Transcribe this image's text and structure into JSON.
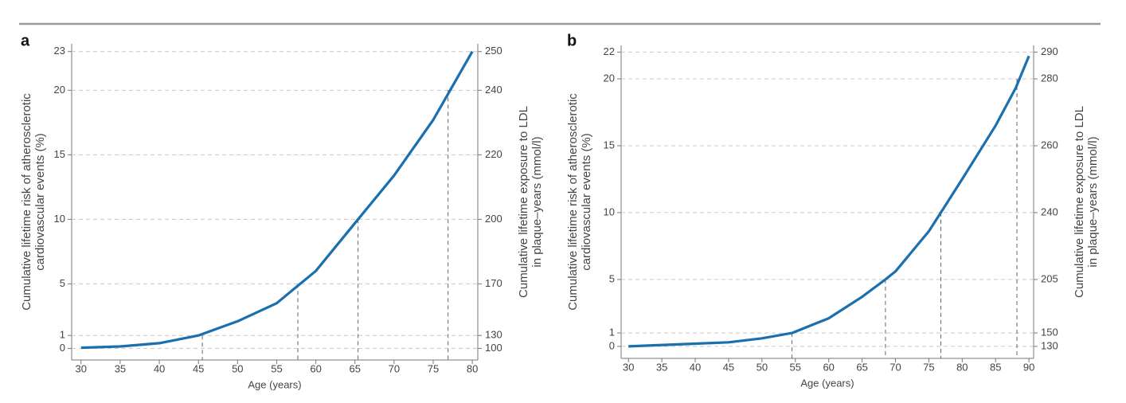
{
  "chart_data": [
    {
      "type": "line",
      "panel": "a",
      "xlabel": "Age (years)",
      "ylabel": [
        "Cumulative lifetime risk of atherosclerotic",
        "cardiovascular events (%)"
      ],
      "y2label": [
        "Cumulative lifetime exposure to LDL",
        "in plaque–years (mmol/l)"
      ],
      "x": [
        30,
        35,
        40,
        45,
        50,
        55,
        58,
        60,
        65,
        70,
        75,
        80
      ],
      "values": [
        0.05,
        0.15,
        0.4,
        1,
        2.1,
        3.5,
        5,
        6,
        9.7,
        13.4,
        17.7,
        23
      ],
      "color": "#1a6faf",
      "xlim": [
        28.8,
        80.7
      ],
      "ylim": [
        -0.9,
        23.6
      ],
      "xticks": [
        30,
        35,
        40,
        45,
        50,
        55,
        60,
        65,
        70,
        75,
        80
      ],
      "yticks": [
        0,
        1,
        5,
        10,
        15,
        20,
        23
      ],
      "y2ticks": [
        100,
        130,
        170,
        200,
        220,
        240,
        250
      ],
      "markers": [
        {
          "x": 45.5,
          "y": 1
        },
        {
          "x": 57.7,
          "y": 5
        },
        {
          "x": 65.4,
          "y": 10
        },
        {
          "x": 76.9,
          "y": 20
        }
      ],
      "grid": true
    },
    {
      "type": "line",
      "panel": "b",
      "xlabel": "Age (years)",
      "ylabel": [
        "Cumulative lifetime risk of atherosclerotic",
        "cardiovascular events (%)"
      ],
      "y2label": [
        "Cumulative lifetime exposure to LDL",
        "in plaque–years (mmol/l)"
      ],
      "x": [
        30,
        40,
        45,
        50,
        54.5,
        60,
        65,
        68.5,
        70,
        75,
        76.8,
        80,
        85,
        88,
        90
      ],
      "values": [
        0,
        0.2,
        0.3,
        0.6,
        1,
        2.1,
        3.7,
        5,
        5.6,
        8.6,
        10,
        12.5,
        16.5,
        19.3,
        21.7
      ],
      "color": "#1a6faf",
      "xlim": [
        28.9,
        90.7
      ],
      "ylim": [
        -0.9,
        22.5
      ],
      "xticks": [
        30,
        35,
        40,
        45,
        50,
        55,
        60,
        65,
        70,
        75,
        80,
        85,
        90
      ],
      "yticks": [
        0,
        1,
        5,
        10,
        15,
        20,
        22
      ],
      "y2ticks": [
        130,
        150,
        205,
        240,
        260,
        280,
        290
      ],
      "markers": [
        {
          "x": 54.5,
          "y": 1
        },
        {
          "x": 68.5,
          "y": 5
        },
        {
          "x": 76.8,
          "y": 10
        },
        {
          "x": 88.2,
          "y": 20
        }
      ],
      "grid": true
    }
  ]
}
